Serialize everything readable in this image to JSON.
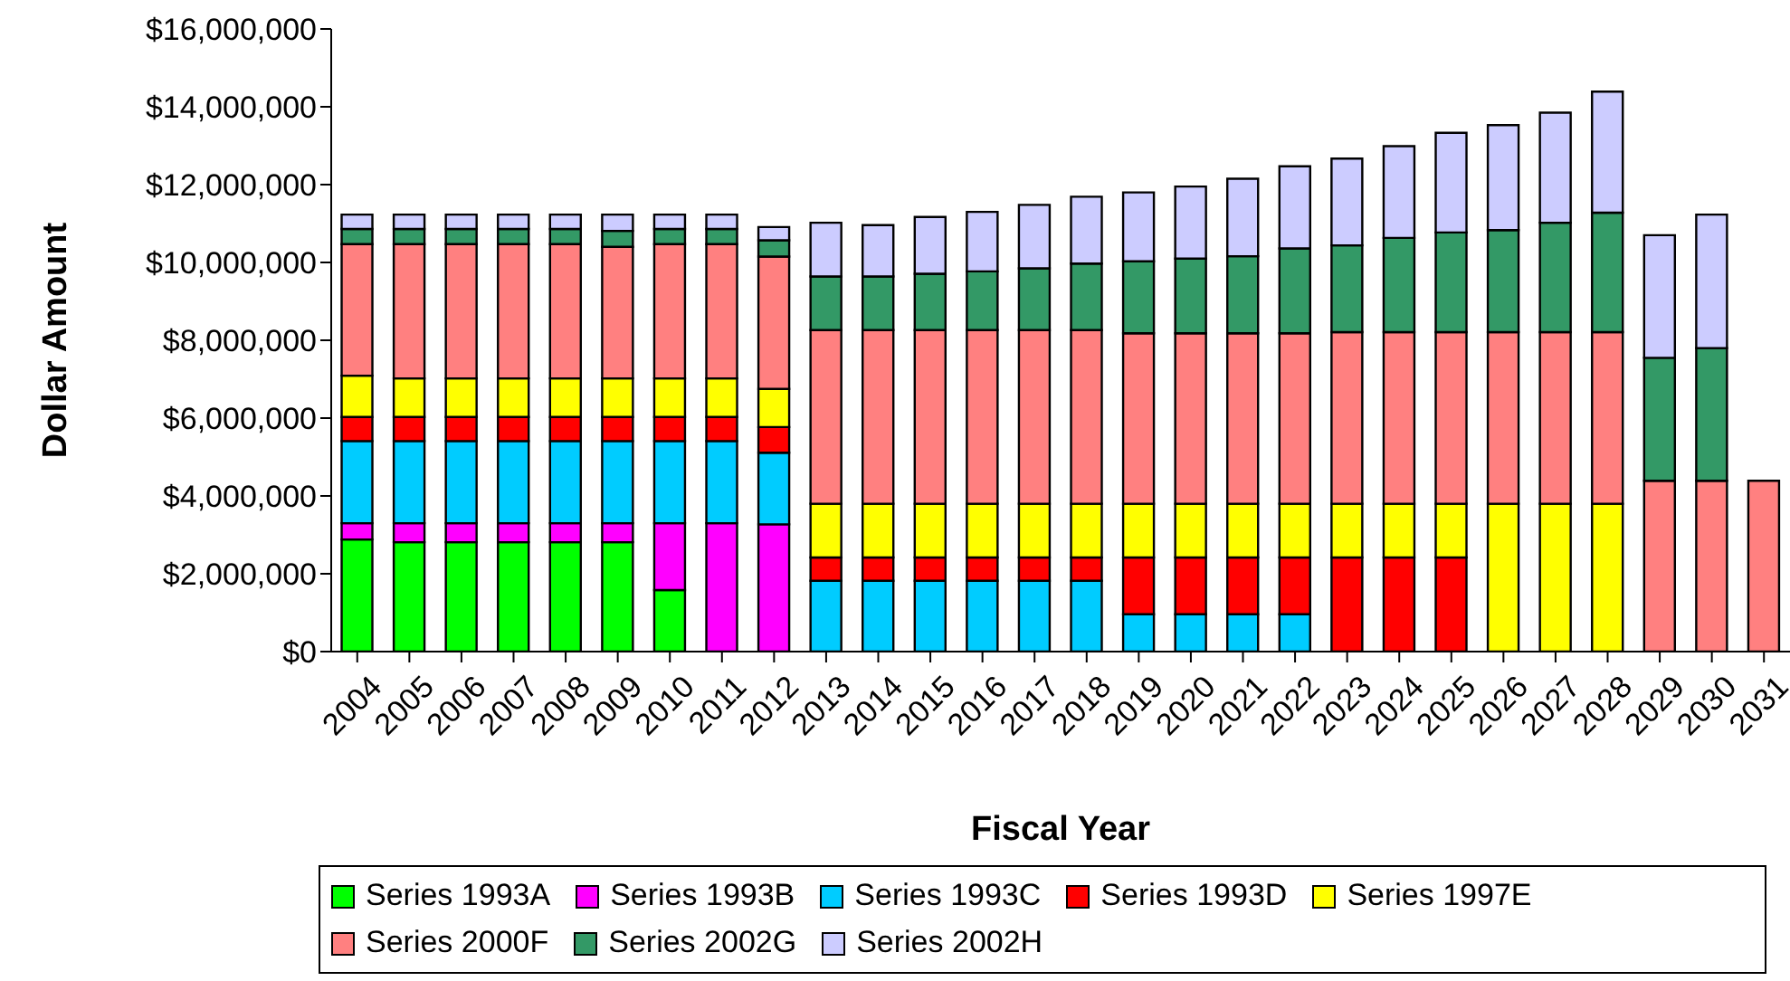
{
  "chart_data": {
    "type": "bar",
    "stacked": true,
    "xlabel": "Fiscal Year",
    "ylabel": "Dollar Amount",
    "categories": [
      "2004",
      "2005",
      "2006",
      "2007",
      "2008",
      "2009",
      "2010",
      "2011",
      "2012",
      "2013",
      "2014",
      "2015",
      "2016",
      "2017",
      "2018",
      "2019",
      "2020",
      "2021",
      "2022",
      "2023",
      "2024",
      "2025",
      "2026",
      "2027",
      "2028",
      "2029",
      "2030",
      "2031"
    ],
    "ylim": [
      0,
      16000000
    ],
    "yticks": [
      {
        "value": 0,
        "label": "$0"
      },
      {
        "value": 2000000,
        "label": "$2,000,000"
      },
      {
        "value": 4000000,
        "label": "$4,000,000"
      },
      {
        "value": 6000000,
        "label": "$6,000,000"
      },
      {
        "value": 8000000,
        "label": "$8,000,000"
      },
      {
        "value": 10000000,
        "label": "$10,000,000"
      },
      {
        "value": 12000000,
        "label": "$12,000,000"
      },
      {
        "value": 14000000,
        "label": "$14,000,000"
      },
      {
        "value": 16000000,
        "label": "$16,000,000"
      }
    ],
    "grid": false,
    "legend": "bottom",
    "series": [
      {
        "name": "Series 1993A",
        "color": "#00ff00",
        "values": [
          2880000,
          2810000,
          2810000,
          2810000,
          2810000,
          2810000,
          1580000,
          null,
          null,
          null,
          null,
          null,
          null,
          null,
          null,
          null,
          null,
          null,
          null,
          null,
          null,
          null,
          null,
          null,
          null,
          null,
          null,
          null
        ]
      },
      {
        "name": "Series 1993B",
        "color": "#ff00ff",
        "values": [
          420000,
          490000,
          490000,
          490000,
          490000,
          490000,
          1720000,
          3300000,
          3270000,
          null,
          null,
          null,
          null,
          null,
          null,
          null,
          null,
          null,
          null,
          null,
          null,
          null,
          null,
          null,
          null,
          null,
          null,
          null
        ]
      },
      {
        "name": "Series 1993C",
        "color": "#00ccff",
        "values": [
          2110000,
          2110000,
          2110000,
          2110000,
          2110000,
          2110000,
          2110000,
          2110000,
          1840000,
          1820000,
          1820000,
          1820000,
          1820000,
          1820000,
          1820000,
          960000,
          960000,
          960000,
          960000,
          null,
          null,
          null,
          null,
          null,
          null,
          null,
          null,
          null
        ]
      },
      {
        "name": "Series 1993D",
        "color": "#ff0000",
        "values": [
          620000,
          620000,
          620000,
          620000,
          620000,
          620000,
          620000,
          620000,
          660000,
          600000,
          600000,
          600000,
          600000,
          600000,
          600000,
          1460000,
          1460000,
          1460000,
          1460000,
          2420000,
          2420000,
          2420000,
          null,
          null,
          null,
          null,
          null,
          null
        ]
      },
      {
        "name": "Series 1997E",
        "color": "#ffff00",
        "values": [
          1060000,
          990000,
          990000,
          990000,
          990000,
          990000,
          990000,
          990000,
          980000,
          1380000,
          1380000,
          1380000,
          1380000,
          1380000,
          1380000,
          1380000,
          1380000,
          1380000,
          1380000,
          1380000,
          1380000,
          1380000,
          3800000,
          3800000,
          3800000,
          null,
          null,
          null
        ]
      },
      {
        "name": "Series 2000F",
        "color": "#ff8080",
        "values": [
          3380000,
          3450000,
          3450000,
          3450000,
          3450000,
          3380000,
          3450000,
          3450000,
          3400000,
          4460000,
          4460000,
          4460000,
          4460000,
          4460000,
          4460000,
          4380000,
          4380000,
          4380000,
          4380000,
          4410000,
          4410000,
          4410000,
          4410000,
          4410000,
          4410000,
          4390000,
          4390000,
          4390000
        ]
      },
      {
        "name": "Series 2002G",
        "color": "#339966",
        "values": [
          390000,
          390000,
          390000,
          390000,
          390000,
          410000,
          390000,
          390000,
          420000,
          1380000,
          1380000,
          1450000,
          1510000,
          1590000,
          1710000,
          1850000,
          1920000,
          1980000,
          2180000,
          2230000,
          2420000,
          2560000,
          2620000,
          2810000,
          3070000,
          3160000,
          3410000,
          null
        ]
      },
      {
        "name": "Series 2002H",
        "color": "#ccccff",
        "values": [
          370000,
          370000,
          370000,
          370000,
          370000,
          420000,
          370000,
          370000,
          340000,
          1380000,
          1320000,
          1460000,
          1530000,
          1630000,
          1720000,
          1770000,
          1850000,
          1990000,
          2110000,
          2230000,
          2360000,
          2560000,
          2700000,
          2830000,
          3110000,
          3150000,
          3430000,
          null
        ]
      }
    ]
  }
}
